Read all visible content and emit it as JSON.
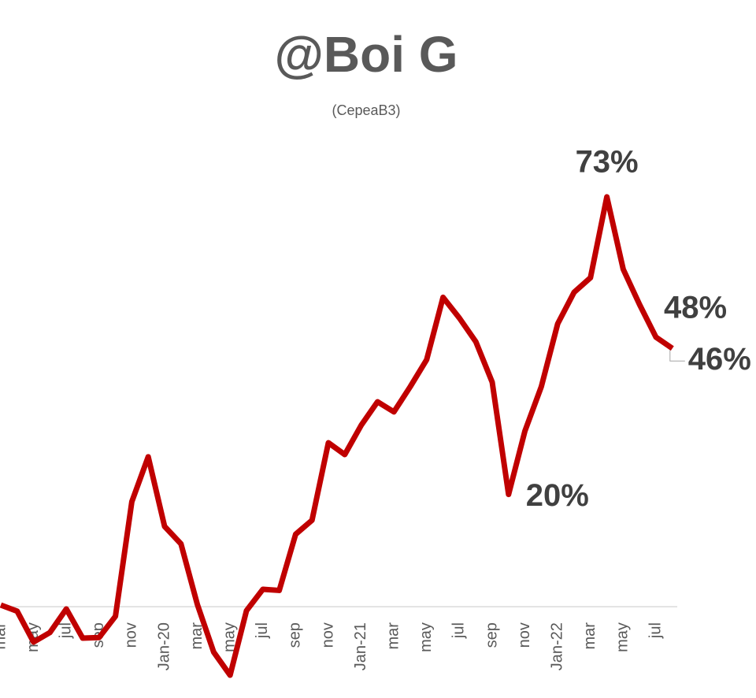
{
  "chart_data": {
    "type": "line",
    "title": "@Boi G",
    "subtitle": "(CepeaB3)",
    "categories": [
      "mar",
      null,
      "may",
      null,
      "jul",
      null,
      "sep",
      null,
      "nov",
      null,
      "Jan-20",
      null,
      "mar",
      null,
      "may",
      null,
      "jul",
      null,
      "sep",
      null,
      "nov",
      null,
      "Jan-21",
      null,
      "mar",
      null,
      "may",
      null,
      "jul",
      null,
      "sep",
      null,
      "nov",
      null,
      "Jan-22",
      null,
      "mar",
      null,
      "may",
      null,
      "jul",
      null
    ],
    "series": [
      {
        "color": "#c00000",
        "values": [
          0.3,
          -0.8,
          -6.3,
          -4.6,
          -0.4,
          -5.6,
          -5.5,
          -1.7,
          18.7,
          26.7,
          14.3,
          11.2,
          0.4,
          -8.1,
          -12.2,
          -0.7,
          3.1,
          2.9,
          12.9,
          15.4,
          29.2,
          27.1,
          32.3,
          36.5,
          34.7,
          39.2,
          44.0,
          55.1,
          51.4,
          47.2,
          40.0,
          20,
          31.3,
          39.2,
          50.4,
          56.0,
          58.6,
          73,
          60.1,
          53.8,
          48,
          46
        ],
        "value_labels": [
          null,
          null,
          null,
          null,
          null,
          null,
          null,
          null,
          null,
          null,
          null,
          null,
          null,
          null,
          null,
          null,
          null,
          null,
          null,
          null,
          null,
          null,
          null,
          null,
          null,
          null,
          null,
          null,
          null,
          null,
          null,
          "20%",
          null,
          null,
          null,
          null,
          null,
          "73%",
          null,
          null,
          "48%",
          "46%"
        ]
      }
    ],
    "ylim": [
      -15,
      80
    ]
  }
}
